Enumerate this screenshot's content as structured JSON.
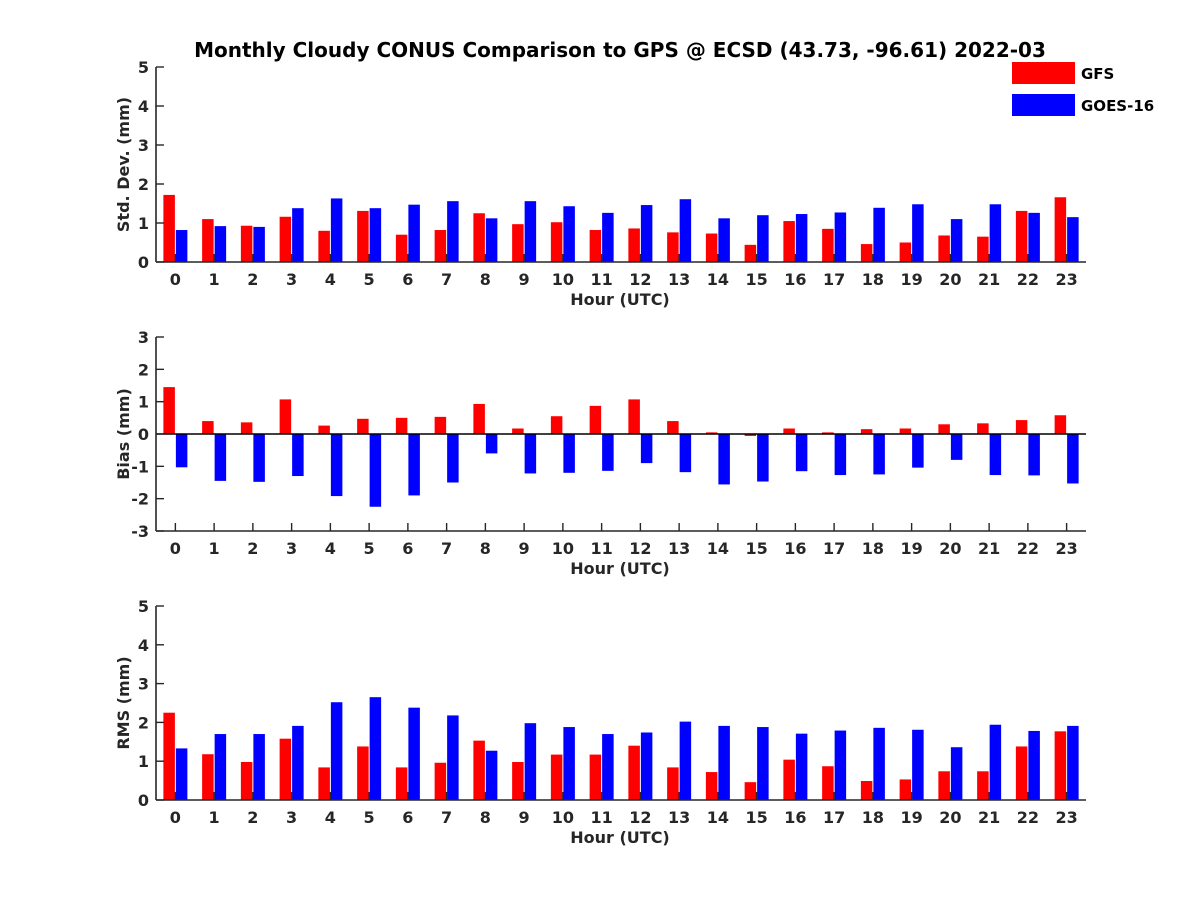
{
  "chart_data": {
    "title": "Monthly Cloudy CONUS Comparison to GPS @ ECSD (43.73, -96.61) 2022-03",
    "type": "bar",
    "categories": [
      "0",
      "1",
      "2",
      "3",
      "4",
      "5",
      "6",
      "7",
      "8",
      "9",
      "10",
      "11",
      "12",
      "13",
      "14",
      "15",
      "16",
      "17",
      "18",
      "19",
      "20",
      "21",
      "22",
      "23"
    ],
    "legend": {
      "placement": "top-right",
      "entries": [
        {
          "name": "GFS",
          "color": "#ff0000"
        },
        {
          "name": "GOES-16",
          "color": "#0000ff"
        }
      ]
    },
    "panels": [
      {
        "id": "stddev",
        "ylabel": "Std. Dev. (mm)",
        "xlabel": "Hour (UTC)",
        "ylim": [
          0,
          5
        ],
        "yticks": [
          0,
          1,
          2,
          3,
          4,
          5
        ],
        "series": [
          {
            "name": "GFS",
            "color": "#ff0000",
            "values": [
              1.72,
              1.1,
              0.93,
              1.16,
              0.8,
              1.31,
              0.7,
              0.82,
              1.25,
              0.97,
              1.02,
              0.82,
              0.86,
              0.76,
              0.73,
              0.44,
              1.05,
              0.85,
              0.46,
              0.5,
              0.68,
              0.65,
              1.31,
              1.66
            ]
          },
          {
            "name": "GOES-16",
            "color": "#0000ff",
            "values": [
              0.82,
              0.92,
              0.9,
              1.38,
              1.63,
              1.38,
              1.47,
              1.56,
              1.12,
              1.56,
              1.43,
              1.26,
              1.46,
              1.61,
              1.12,
              1.2,
              1.23,
              1.27,
              1.39,
              1.48,
              1.1,
              1.48,
              1.26,
              1.15
            ]
          }
        ]
      },
      {
        "id": "bias",
        "ylabel": "Bias (mm)",
        "xlabel": "Hour (UTC)",
        "ylim": [
          -3,
          3
        ],
        "yticks": [
          -3,
          -2,
          -1,
          0,
          1,
          2,
          3
        ],
        "series": [
          {
            "name": "GFS",
            "color": "#ff0000",
            "values": [
              1.45,
              0.4,
              0.36,
              1.07,
              0.26,
              0.47,
              0.5,
              0.53,
              0.93,
              0.17,
              0.55,
              0.87,
              1.07,
              0.4,
              0.05,
              -0.06,
              0.17,
              0.05,
              0.15,
              0.17,
              0.3,
              0.33,
              0.43,
              0.58
            ]
          },
          {
            "name": "GOES-16",
            "color": "#0000ff",
            "values": [
              -1.03,
              -1.45,
              -1.48,
              -1.3,
              -1.92,
              -2.25,
              -1.9,
              -1.5,
              -0.6,
              -1.22,
              -1.2,
              -1.14,
              -0.9,
              -1.18,
              -1.56,
              -1.47,
              -1.15,
              -1.27,
              -1.25,
              -1.04,
              -0.8,
              -1.27,
              -1.28,
              -1.53
            ]
          }
        ]
      },
      {
        "id": "rms",
        "ylabel": "RMS (mm)",
        "xlabel": "Hour (UTC)",
        "ylim": [
          0,
          5
        ],
        "yticks": [
          0,
          1,
          2,
          3,
          4,
          5
        ],
        "series": [
          {
            "name": "GFS",
            "color": "#ff0000",
            "values": [
              2.25,
              1.18,
              0.98,
              1.58,
              0.84,
              1.38,
              0.84,
              0.96,
              1.53,
              0.98,
              1.17,
              1.17,
              1.4,
              0.84,
              0.72,
              0.46,
              1.04,
              0.87,
              0.49,
              0.53,
              0.74,
              0.74,
              1.38,
              1.77
            ]
          },
          {
            "name": "GOES-16",
            "color": "#0000ff",
            "values": [
              1.33,
              1.7,
              1.7,
              1.91,
              2.52,
              2.65,
              2.38,
              2.18,
              1.27,
              1.98,
              1.88,
              1.7,
              1.74,
              2.02,
              1.91,
              1.88,
              1.71,
              1.79,
              1.86,
              1.81,
              1.36,
              1.94,
              1.78,
              1.91
            ]
          }
        ]
      }
    ]
  }
}
